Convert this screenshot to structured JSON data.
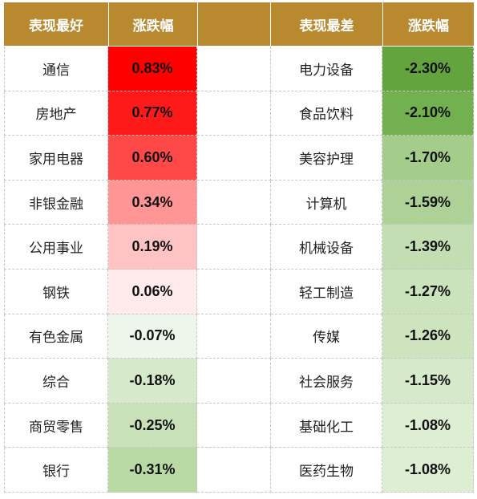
{
  "headers": {
    "best": "表现最好",
    "change1": "涨跌幅",
    "worst": "表现最差",
    "change2": "涨跌幅"
  },
  "colors": {
    "header_bg": "#b8892f",
    "header_text": "#ffffff"
  },
  "rows": [
    {
      "best_name": "通信",
      "best_change": "0.83%",
      "best_color": "#fe0000",
      "worst_name": "电力设备",
      "worst_change": "-2.30%",
      "worst_color": "#63a43f"
    },
    {
      "best_name": "房地产",
      "best_change": "0.77%",
      "best_color": "#ff1a1a",
      "worst_name": "食品饮料",
      "worst_change": "-2.10%",
      "worst_color": "#73b150"
    },
    {
      "best_name": "家用电器",
      "best_change": "0.60%",
      "best_color": "#ff4848",
      "worst_name": "美容护理",
      "worst_change": "-1.70%",
      "worst_color": "#a4cc8b"
    },
    {
      "best_name": "非银金融",
      "best_change": "0.34%",
      "best_color": "#ff9595",
      "worst_name": "计算机",
      "worst_change": "-1.59%",
      "worst_color": "#aed198"
    },
    {
      "best_name": "公用事业",
      "best_change": "0.19%",
      "best_color": "#ffc3c3",
      "worst_name": "机械设备",
      "worst_change": "-1.39%",
      "worst_color": "#c3deb2"
    },
    {
      "best_name": "钢铁",
      "best_change": "0.06%",
      "best_color": "#ffebeb",
      "worst_name": "轻工制造",
      "worst_change": "-1.27%",
      "worst_color": "#cbe3bc"
    },
    {
      "best_name": "有色金属",
      "best_change": "-0.07%",
      "best_color": "#eef5ea",
      "worst_name": "传媒",
      "worst_change": "-1.26%",
      "worst_color": "#cde4bf"
    },
    {
      "best_name": "综合",
      "best_change": "-0.18%",
      "best_color": "#d6e9ca",
      "worst_name": "社会服务",
      "worst_change": "-1.15%",
      "worst_color": "#d6e9ca"
    },
    {
      "best_name": "商贸零售",
      "best_change": "-0.25%",
      "best_color": "#c8e1b8",
      "worst_name": "基础化工",
      "worst_change": "-1.08%",
      "worst_color": "#ddeed3"
    },
    {
      "best_name": "银行",
      "best_change": "-0.31%",
      "best_color": "#b9d9a5",
      "worst_name": "医药生物",
      "worst_change": "-1.08%",
      "worst_color": "#ddeed3"
    }
  ]
}
